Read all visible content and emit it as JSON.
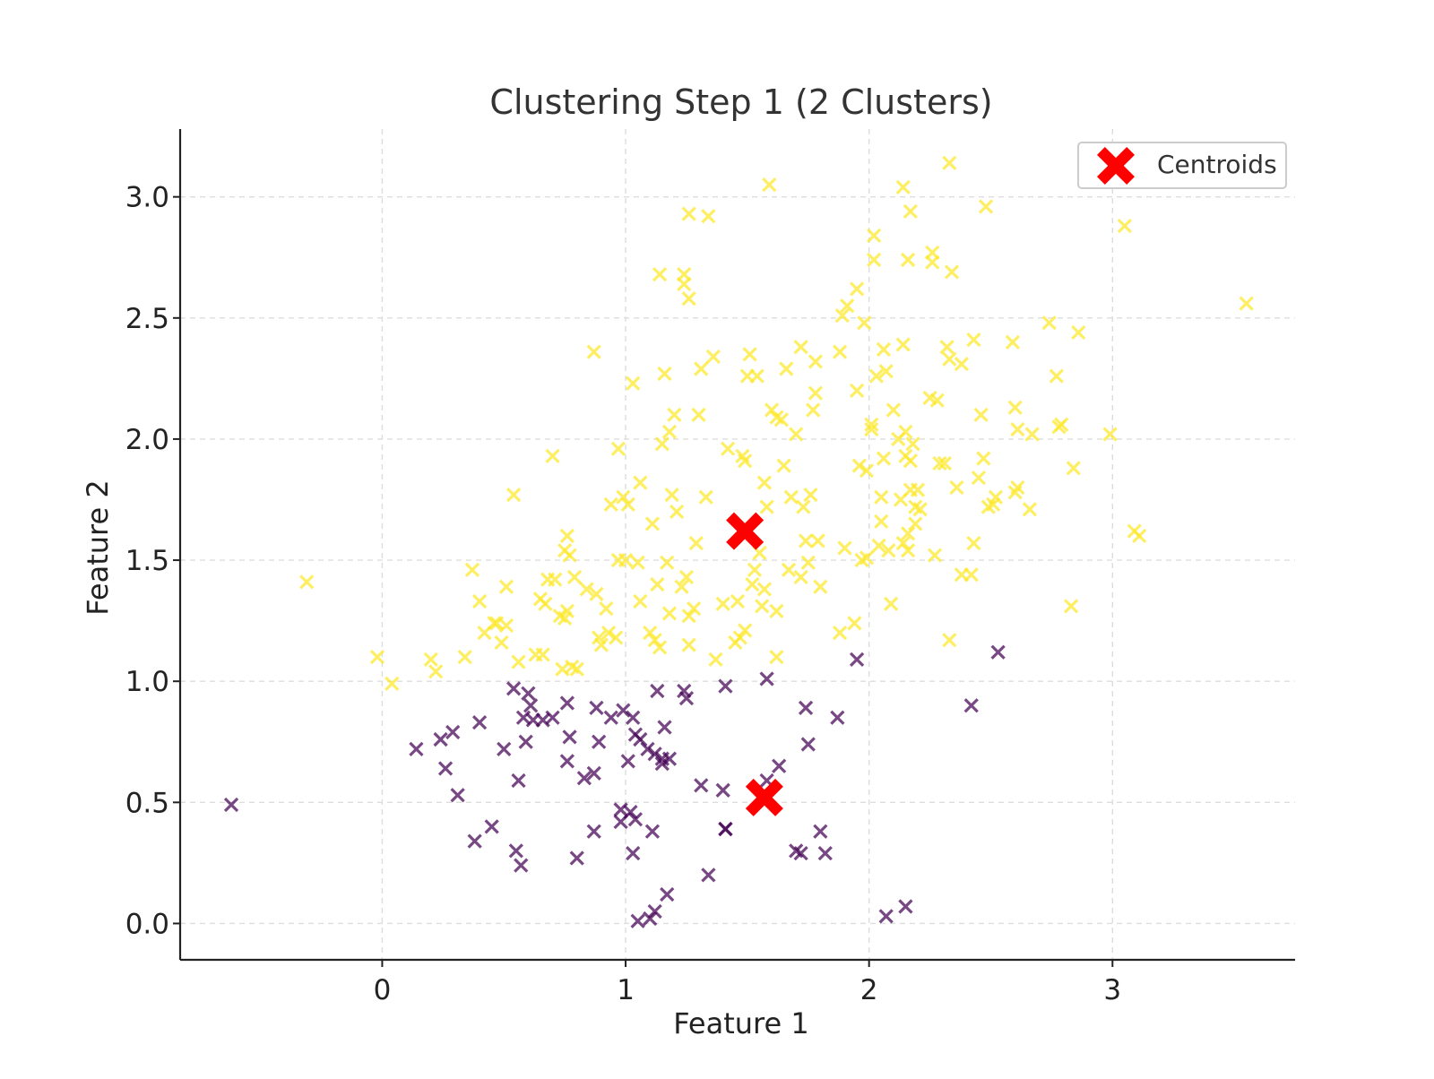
{
  "chart_data": {
    "type": "scatter",
    "title": "Clustering Step 1 (2 Clusters)",
    "xlabel": "Feature 1",
    "ylabel": "Feature 2",
    "xlim": [
      -0.83,
      3.75
    ],
    "ylim": [
      -0.15,
      3.28
    ],
    "x_ticks": [
      0,
      1,
      2,
      3
    ],
    "x_tick_labels": [
      "0",
      "1",
      "2",
      "3"
    ],
    "y_ticks": [
      0.0,
      0.5,
      1.0,
      1.5,
      2.0,
      2.5,
      3.0
    ],
    "y_tick_labels": [
      "0.0",
      "0.5",
      "1.0",
      "1.5",
      "2.0",
      "2.5",
      "3.0"
    ],
    "grid": true,
    "legend": {
      "position": "top-right",
      "entries": [
        "Centroids"
      ]
    },
    "colors": {
      "cluster_0": "#440154",
      "cluster_1": "#fde725",
      "centroid": "#ff0000"
    },
    "series": [
      {
        "cluster": 0,
        "marker": "x",
        "points": [
          [
            -0.62,
            0.49
          ],
          [
            0.14,
            0.72
          ],
          [
            0.24,
            0.76
          ],
          [
            0.26,
            0.64
          ],
          [
            0.29,
            0.79
          ],
          [
            0.31,
            0.53
          ],
          [
            0.38,
            0.34
          ],
          [
            0.4,
            0.83
          ],
          [
            0.45,
            0.4
          ],
          [
            0.5,
            0.72
          ],
          [
            0.54,
            0.97
          ],
          [
            0.55,
            0.3
          ],
          [
            0.56,
            0.59
          ],
          [
            0.57,
            0.24
          ],
          [
            0.58,
            0.85
          ],
          [
            0.59,
            0.75
          ],
          [
            0.6,
            0.95
          ],
          [
            0.61,
            0.9
          ],
          [
            0.62,
            0.84
          ],
          [
            0.66,
            0.84
          ],
          [
            0.7,
            0.85
          ],
          [
            0.76,
            0.91
          ],
          [
            0.76,
            0.67
          ],
          [
            0.77,
            0.77
          ],
          [
            0.8,
            0.27
          ],
          [
            0.83,
            0.6
          ],
          [
            0.87,
            0.62
          ],
          [
            0.88,
            0.89
          ],
          [
            0.89,
            0.75
          ],
          [
            0.87,
            0.38
          ],
          [
            0.94,
            0.85
          ],
          [
            0.99,
            0.88
          ],
          [
            0.98,
            0.47
          ],
          [
            0.98,
            0.42
          ],
          [
            1.01,
            0.67
          ],
          [
            1.02,
            0.46
          ],
          [
            1.03,
            0.85
          ],
          [
            1.03,
            0.29
          ],
          [
            1.04,
            0.78
          ],
          [
            1.04,
            0.43
          ],
          [
            1.06,
            0.76
          ],
          [
            1.05,
            0.01
          ],
          [
            1.09,
            0.72
          ],
          [
            1.1,
            0.02
          ],
          [
            1.12,
            0.7
          ],
          [
            1.11,
            0.38
          ],
          [
            1.12,
            0.05
          ],
          [
            1.13,
            0.96
          ],
          [
            1.15,
            0.66
          ],
          [
            1.15,
            0.68
          ],
          [
            1.16,
            0.81
          ],
          [
            1.17,
            0.12
          ],
          [
            1.18,
            0.68
          ],
          [
            1.24,
            0.96
          ],
          [
            1.25,
            0.93
          ],
          [
            1.31,
            0.57
          ],
          [
            1.34,
            0.2
          ],
          [
            1.4,
            0.55
          ],
          [
            1.41,
            0.98
          ],
          [
            1.41,
            0.39
          ],
          [
            1.41,
            0.39
          ],
          [
            1.58,
            1.01
          ],
          [
            1.58,
            0.59
          ],
          [
            1.63,
            0.65
          ],
          [
            1.7,
            0.3
          ],
          [
            1.72,
            0.29
          ],
          [
            1.74,
            0.89
          ],
          [
            1.75,
            0.74
          ],
          [
            1.8,
            0.38
          ],
          [
            1.82,
            0.29
          ],
          [
            1.87,
            0.85
          ],
          [
            1.95,
            1.09
          ],
          [
            2.07,
            0.03
          ],
          [
            2.15,
            0.07
          ],
          [
            2.42,
            0.9
          ],
          [
            2.53,
            1.12
          ]
        ]
      },
      {
        "cluster": 1,
        "marker": "x",
        "points": [
          [
            -0.31,
            1.41
          ],
          [
            -0.02,
            1.1
          ],
          [
            0.04,
            0.99
          ],
          [
            0.2,
            1.09
          ],
          [
            0.22,
            1.04
          ],
          [
            0.34,
            1.1
          ],
          [
            0.37,
            1.46
          ],
          [
            0.4,
            1.33
          ],
          [
            0.42,
            1.2
          ],
          [
            0.46,
            1.24
          ],
          [
            0.47,
            1.24
          ],
          [
            0.49,
            1.16
          ],
          [
            0.51,
            1.23
          ],
          [
            0.51,
            1.39
          ],
          [
            0.54,
            1.77
          ],
          [
            0.56,
            1.08
          ],
          [
            0.63,
            1.11
          ],
          [
            0.65,
            1.34
          ],
          [
            0.66,
            1.11
          ],
          [
            0.67,
            1.32
          ],
          [
            0.68,
            1.42
          ],
          [
            0.7,
            1.93
          ],
          [
            0.71,
            1.42
          ],
          [
            0.73,
            1.27
          ],
          [
            0.74,
            1.05
          ],
          [
            0.75,
            1.54
          ],
          [
            0.76,
            1.6
          ],
          [
            0.76,
            1.29
          ],
          [
            0.77,
            1.52
          ],
          [
            0.78,
            1.06
          ],
          [
            0.79,
            1.43
          ],
          [
            0.84,
            1.38
          ],
          [
            0.87,
            2.36
          ],
          [
            0.88,
            1.36
          ],
          [
            0.89,
            1.18
          ],
          [
            0.9,
            1.15
          ],
          [
            0.92,
            1.3
          ],
          [
            0.93,
            1.2
          ],
          [
            0.94,
            1.73
          ],
          [
            0.96,
            1.18
          ],
          [
            0.97,
            1.96
          ],
          [
            0.97,
            1.5
          ],
          [
            0.99,
            1.76
          ],
          [
            1.0,
            1.5
          ],
          [
            1.01,
            1.73
          ],
          [
            1.03,
            2.23
          ],
          [
            1.05,
            1.49
          ],
          [
            1.06,
            1.33
          ],
          [
            1.06,
            1.82
          ],
          [
            1.1,
            1.2
          ],
          [
            1.11,
            1.65
          ],
          [
            1.12,
            1.17
          ],
          [
            1.13,
            1.4
          ],
          [
            1.14,
            2.68
          ],
          [
            1.14,
            1.14
          ],
          [
            1.15,
            1.98
          ],
          [
            1.16,
            2.27
          ],
          [
            1.17,
            1.49
          ],
          [
            1.18,
            1.28
          ],
          [
            1.18,
            2.03
          ],
          [
            1.19,
            1.77
          ],
          [
            1.2,
            2.1
          ],
          [
            1.21,
            1.7
          ],
          [
            1.23,
            1.39
          ],
          [
            1.24,
            2.64
          ],
          [
            1.24,
            2.68
          ],
          [
            1.25,
            1.43
          ],
          [
            1.26,
            2.93
          ],
          [
            1.26,
            2.58
          ],
          [
            1.26,
            1.15
          ],
          [
            1.26,
            1.27
          ],
          [
            1.28,
            1.3
          ],
          [
            1.29,
            1.57
          ],
          [
            1.3,
            2.1
          ],
          [
            1.31,
            2.29
          ],
          [
            1.33,
            1.76
          ],
          [
            1.34,
            2.92
          ],
          [
            1.36,
            2.34
          ],
          [
            1.37,
            1.09
          ],
          [
            1.4,
            1.32
          ],
          [
            1.42,
            1.96
          ],
          [
            1.45,
            1.16
          ],
          [
            1.46,
            1.33
          ],
          [
            1.47,
            1.18
          ],
          [
            1.48,
            1.93
          ],
          [
            1.49,
            1.91
          ],
          [
            1.49,
            1.21
          ],
          [
            1.5,
            2.26
          ],
          [
            1.51,
            2.35
          ],
          [
            1.52,
            1.4
          ],
          [
            1.53,
            1.46
          ],
          [
            1.54,
            2.26
          ],
          [
            1.55,
            1.53
          ],
          [
            1.56,
            1.31
          ],
          [
            1.57,
            1.82
          ],
          [
            1.57,
            1.38
          ],
          [
            1.58,
            1.72
          ],
          [
            1.59,
            3.05
          ],
          [
            1.6,
            2.12
          ],
          [
            1.62,
            1.1
          ],
          [
            1.62,
            2.09
          ],
          [
            1.62,
            1.29
          ],
          [
            1.64,
            2.08
          ],
          [
            1.65,
            1.89
          ],
          [
            1.66,
            2.29
          ],
          [
            1.67,
            1.46
          ],
          [
            1.68,
            1.76
          ],
          [
            1.7,
            2.02
          ],
          [
            1.72,
            2.38
          ],
          [
            1.72,
            1.43
          ],
          [
            1.73,
            1.72
          ],
          [
            1.74,
            1.58
          ],
          [
            1.75,
            1.49
          ],
          [
            1.76,
            1.77
          ],
          [
            1.77,
            2.12
          ],
          [
            1.78,
            2.19
          ],
          [
            1.78,
            2.32
          ],
          [
            1.79,
            1.58
          ],
          [
            1.8,
            1.39
          ],
          [
            1.88,
            2.36
          ],
          [
            1.88,
            1.2
          ],
          [
            1.89,
            2.51
          ],
          [
            1.9,
            1.55
          ],
          [
            1.91,
            2.55
          ],
          [
            1.94,
            1.24
          ],
          [
            1.95,
            2.2
          ],
          [
            1.96,
            1.89
          ],
          [
            1.97,
            1.5
          ],
          [
            1.98,
            2.48
          ],
          [
            1.99,
            1.87
          ],
          [
            1.99,
            1.51
          ],
          [
            2.01,
            2.04
          ],
          [
            2.01,
            2.06
          ],
          [
            2.02,
            2.74
          ],
          [
            2.02,
            2.84
          ],
          [
            2.03,
            2.26
          ],
          [
            2.04,
            1.56
          ],
          [
            2.05,
            1.66
          ],
          [
            2.05,
            1.76
          ],
          [
            2.06,
            1.92
          ],
          [
            2.06,
            2.37
          ],
          [
            2.07,
            2.28
          ],
          [
            2.08,
            1.54
          ],
          [
            2.09,
            1.32
          ],
          [
            2.1,
            2.12
          ],
          [
            2.12,
            2.0
          ],
          [
            2.13,
            1.75
          ],
          [
            2.14,
            2.39
          ],
          [
            2.14,
            1.57
          ],
          [
            2.15,
            1.93
          ],
          [
            2.15,
            2.03
          ],
          [
            2.16,
            2.74
          ],
          [
            2.16,
            1.54
          ],
          [
            2.16,
            1.61
          ],
          [
            2.17,
            1.91
          ],
          [
            2.17,
            1.79
          ],
          [
            2.18,
            1.98
          ],
          [
            2.19,
            1.65
          ],
          [
            2.19,
            1.72
          ],
          [
            2.2,
            1.79
          ],
          [
            2.21,
            1.71
          ],
          [
            2.25,
            2.17
          ],
          [
            2.26,
            2.77
          ],
          [
            2.27,
            1.52
          ],
          [
            2.28,
            2.16
          ],
          [
            2.29,
            1.9
          ],
          [
            2.31,
            1.9
          ],
          [
            2.32,
            2.38
          ],
          [
            2.33,
            2.33
          ],
          [
            2.33,
            1.17
          ],
          [
            2.34,
            2.69
          ],
          [
            2.36,
            1.8
          ],
          [
            2.38,
            2.31
          ],
          [
            2.38,
            1.44
          ],
          [
            2.42,
            1.44
          ],
          [
            2.43,
            1.57
          ],
          [
            2.45,
            1.84
          ],
          [
            2.46,
            2.1
          ],
          [
            2.47,
            1.92
          ],
          [
            2.49,
            1.72
          ],
          [
            2.51,
            1.73
          ],
          [
            2.52,
            1.76
          ],
          [
            2.6,
            1.78
          ],
          [
            2.61,
            1.8
          ],
          [
            2.66,
            1.71
          ],
          [
            2.67,
            2.02
          ],
          [
            2.74,
            2.48
          ],
          [
            2.77,
            2.26
          ],
          [
            2.79,
            2.06
          ],
          [
            2.83,
            1.31
          ],
          [
            2.84,
            1.88
          ],
          [
            2.86,
            2.44
          ],
          [
            3.05,
            2.88
          ],
          [
            3.09,
            1.62
          ],
          [
            3.11,
            1.6
          ],
          [
            3.55,
            2.56
          ],
          [
            0.75,
            1.26
          ],
          [
            0.8,
            1.05
          ],
          [
            2.26,
            2.73
          ],
          [
            2.33,
            3.14
          ],
          [
            2.14,
            3.04
          ],
          [
            2.17,
            2.94
          ],
          [
            2.48,
            2.96
          ],
          [
            1.95,
            2.62
          ],
          [
            2.59,
            2.4
          ],
          [
            2.43,
            2.41
          ],
          [
            2.6,
            2.13
          ],
          [
            2.61,
            2.04
          ],
          [
            2.78,
            2.05
          ],
          [
            2.99,
            2.02
          ]
        ]
      }
    ],
    "centroids": [
      {
        "name": "Centroids",
        "marker": "X",
        "points": [
          [
            1.49,
            1.62
          ],
          [
            1.57,
            0.52
          ]
        ]
      }
    ]
  }
}
